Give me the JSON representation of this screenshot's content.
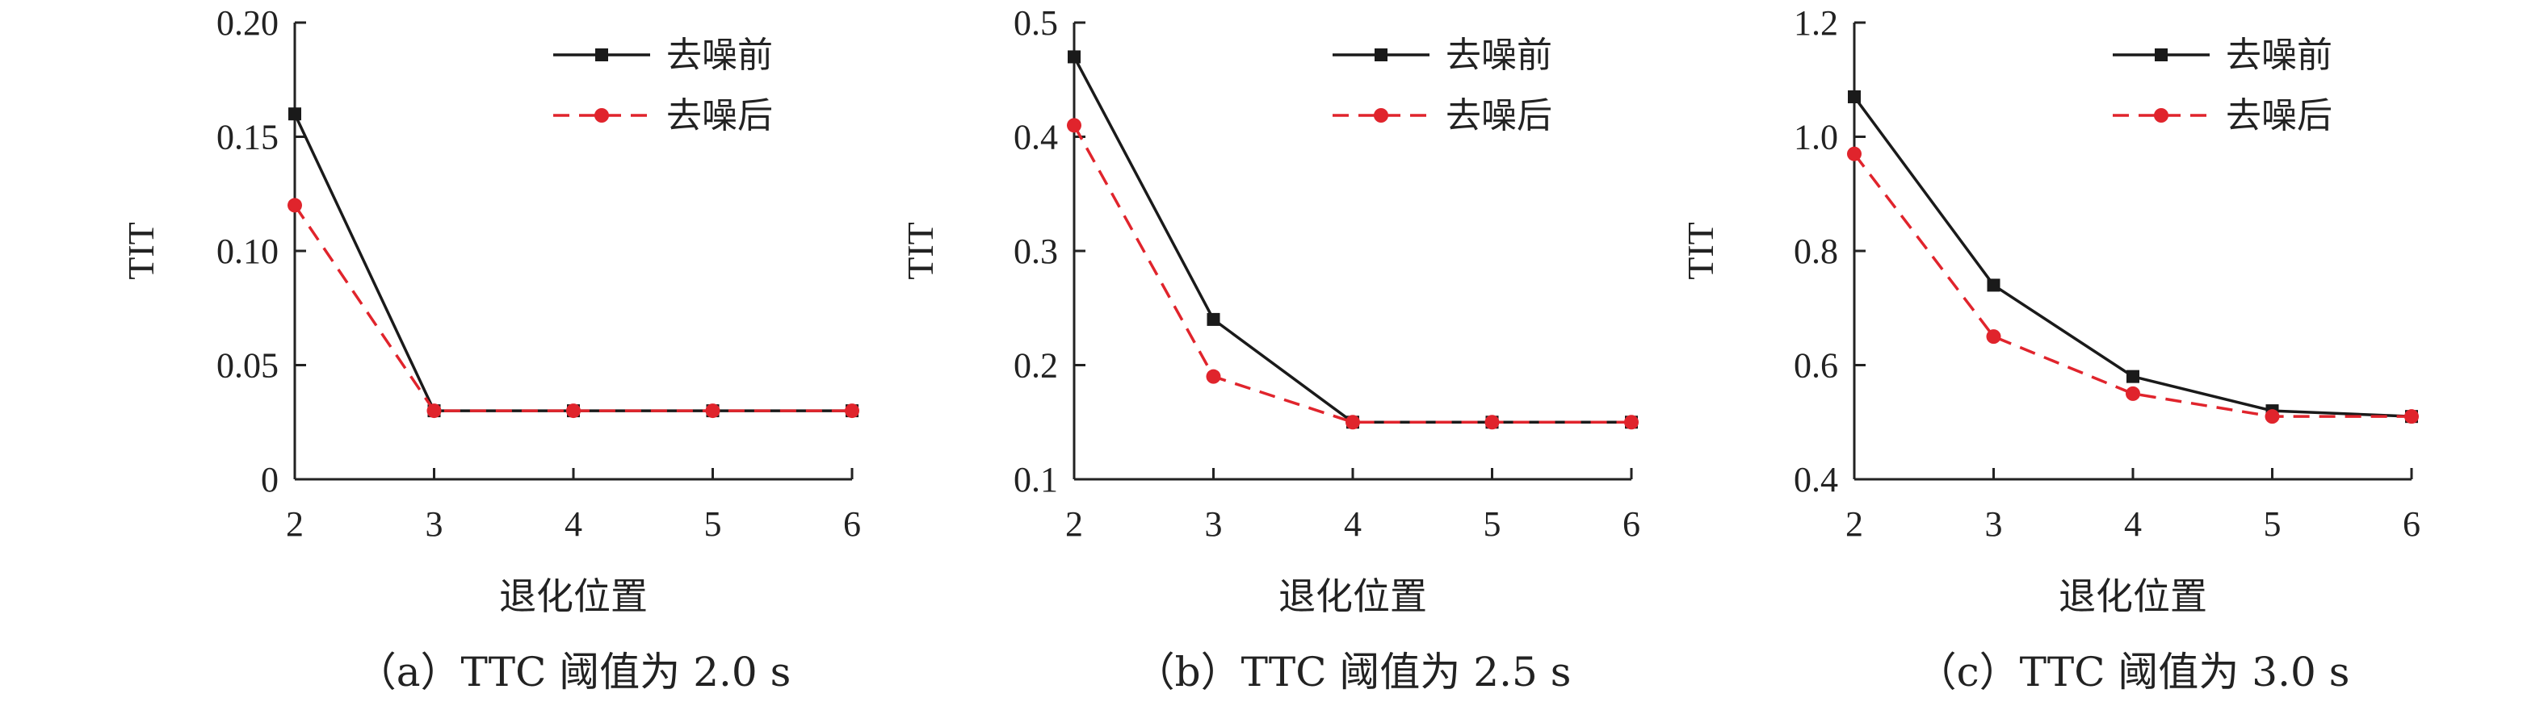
{
  "chart_data": [
    {
      "type": "line",
      "caption": "（a）TTC 阈值为 2.0 s",
      "xlabel": "退化位置",
      "ylabel": "TIT",
      "x": [
        2,
        3,
        4,
        5,
        6
      ],
      "xticks": [
        "2",
        "3",
        "4",
        "5",
        "6"
      ],
      "ylim": [
        0,
        0.2
      ],
      "yticks": [
        "0",
        "0.05",
        "0.10",
        "0.15",
        "0.20"
      ],
      "legend_position": "top-right",
      "series": [
        {
          "name": "去噪前",
          "color": "#1a1a1a",
          "style": "solid",
          "marker": "square",
          "values": [
            0.16,
            0.03,
            0.03,
            0.03,
            0.03
          ]
        },
        {
          "name": "去噪后",
          "color": "#e0242c",
          "style": "dashed",
          "marker": "circle",
          "values": [
            0.12,
            0.03,
            0.03,
            0.03,
            0.03
          ]
        }
      ]
    },
    {
      "type": "line",
      "caption": "（b）TTC 阈值为 2.5 s",
      "xlabel": "退化位置",
      "ylabel": "TIT",
      "x": [
        2,
        3,
        4,
        5,
        6
      ],
      "xticks": [
        "2",
        "3",
        "4",
        "5",
        "6"
      ],
      "ylim": [
        0.1,
        0.5
      ],
      "yticks": [
        "0.1",
        "0.2",
        "0.3",
        "0.4",
        "0.5"
      ],
      "legend_position": "top-right",
      "series": [
        {
          "name": "去噪前",
          "color": "#1a1a1a",
          "style": "solid",
          "marker": "square",
          "values": [
            0.47,
            0.24,
            0.15,
            0.15,
            0.15
          ]
        },
        {
          "name": "去噪后",
          "color": "#e0242c",
          "style": "dashed",
          "marker": "circle",
          "values": [
            0.41,
            0.19,
            0.15,
            0.15,
            0.15
          ]
        }
      ]
    },
    {
      "type": "line",
      "caption": "（c）TTC 阈值为 3.0 s",
      "xlabel": "退化位置",
      "ylabel": "TIT",
      "x": [
        2,
        3,
        4,
        5,
        6
      ],
      "xticks": [
        "2",
        "3",
        "4",
        "5",
        "6"
      ],
      "ylim": [
        0.4,
        1.2
      ],
      "yticks": [
        "0.4",
        "0.6",
        "0.8",
        "1.0",
        "1.2"
      ],
      "legend_position": "top-right",
      "series": [
        {
          "name": "去噪前",
          "color": "#1a1a1a",
          "style": "solid",
          "marker": "square",
          "values": [
            1.07,
            0.74,
            0.58,
            0.52,
            0.51
          ]
        },
        {
          "name": "去噪后",
          "color": "#e0242c",
          "style": "dashed",
          "marker": "circle",
          "values": [
            0.97,
            0.65,
            0.55,
            0.51,
            0.51
          ]
        }
      ]
    }
  ]
}
